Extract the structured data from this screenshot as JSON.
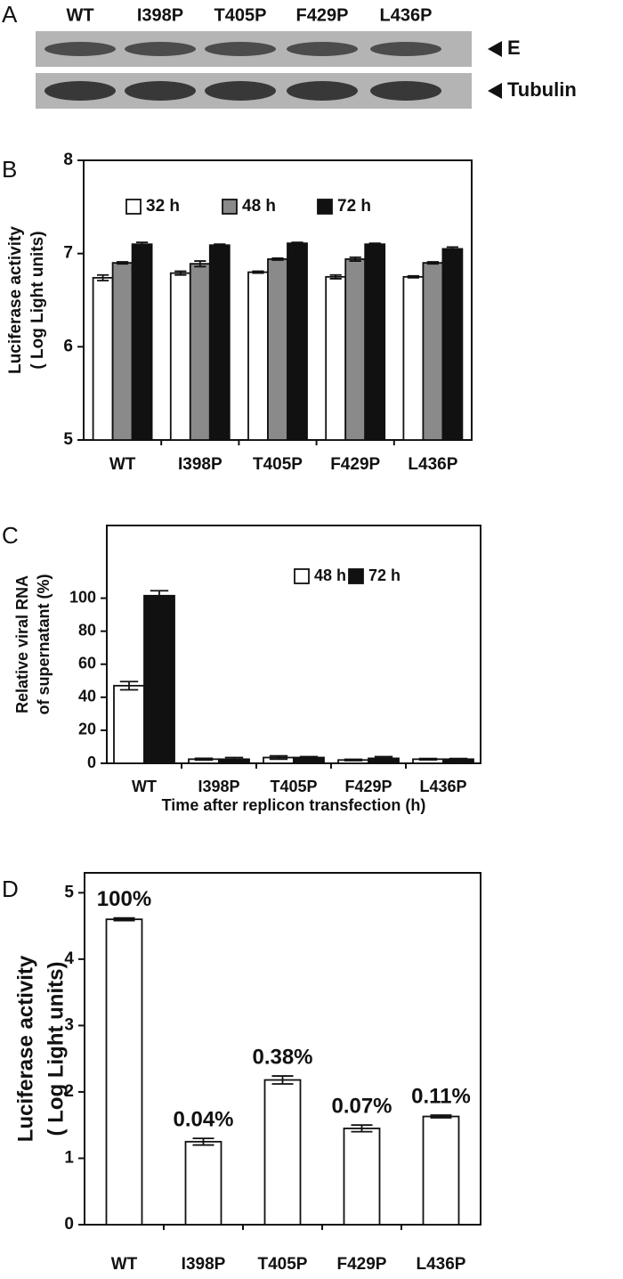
{
  "blot": {
    "panel": "A",
    "lanes": [
      "WT",
      "I398P",
      "T405P",
      "F429P",
      "L436P"
    ],
    "bands": [
      "E",
      "Tubulin"
    ]
  },
  "chart_data": [
    {
      "type": "bar",
      "panel": "B",
      "ylabel": [
        "Luciferase activity",
        "( Log Light units)"
      ],
      "categories": [
        "WT",
        "I398P",
        "T405P",
        "F429P",
        "L436P"
      ],
      "series": [
        {
          "name": "32 h",
          "color": "#ffffff",
          "values": [
            6.74,
            6.79,
            6.8,
            6.75,
            6.75
          ],
          "errors": [
            0.03,
            0.02,
            0.01,
            0.02,
            0.01
          ]
        },
        {
          "name": "48 h",
          "color": "#8a8a8a",
          "values": [
            6.9,
            6.89,
            6.94,
            6.94,
            6.9
          ],
          "errors": [
            0.01,
            0.03,
            0.01,
            0.02,
            0.01
          ]
        },
        {
          "name": "72 h",
          "color": "#111111",
          "values": [
            7.1,
            7.09,
            7.11,
            7.1,
            7.05
          ],
          "errors": [
            0.02,
            0.01,
            0.01,
            0.01,
            0.02
          ]
        }
      ],
      "ylim": [
        5,
        8
      ],
      "yticks": [
        5,
        6,
        7,
        8
      ]
    },
    {
      "type": "bar",
      "panel": "C",
      "ylabel": [
        "Relative viral RNA",
        "of supernatant (%)"
      ],
      "xlabel": "Time after replicon transfection (h)",
      "categories": [
        "WT",
        "I398P",
        "T405P",
        "F429P",
        "L436P"
      ],
      "series": [
        {
          "name": "48 h",
          "color": "#ffffff",
          "values": [
            47,
            2.5,
            3.5,
            2,
            2.5
          ],
          "errors": [
            2.5,
            0.5,
            1,
            0.4,
            0.4
          ]
        },
        {
          "name": "72 h",
          "color": "#111111",
          "values": [
            101.5,
            2.5,
            3.5,
            3,
            2.5
          ],
          "errors": [
            3,
            1,
            0.5,
            1,
            0.4
          ]
        }
      ],
      "ylim": [
        0,
        144
      ],
      "yticks": [
        0,
        20,
        40,
        60,
        80,
        100
      ]
    },
    {
      "type": "bar",
      "panel": "D",
      "ylabel": [
        "Luciferase activity",
        "( Log Light units)"
      ],
      "categories": [
        "WT",
        "I398P",
        "T405P",
        "F429P",
        "L436P"
      ],
      "series": [
        {
          "color": "#ffffff",
          "values": [
            4.6,
            1.25,
            2.18,
            1.45,
            1.63
          ],
          "errors": [
            0.02,
            0.05,
            0.06,
            0.05,
            0.02
          ],
          "annotations": [
            "100%",
            "0.04%",
            "0.38%",
            "0.07%",
            "0.11%"
          ]
        }
      ],
      "ylim": [
        0,
        5.3
      ],
      "yticks": [
        0,
        1,
        2,
        3,
        4,
        5
      ]
    }
  ]
}
